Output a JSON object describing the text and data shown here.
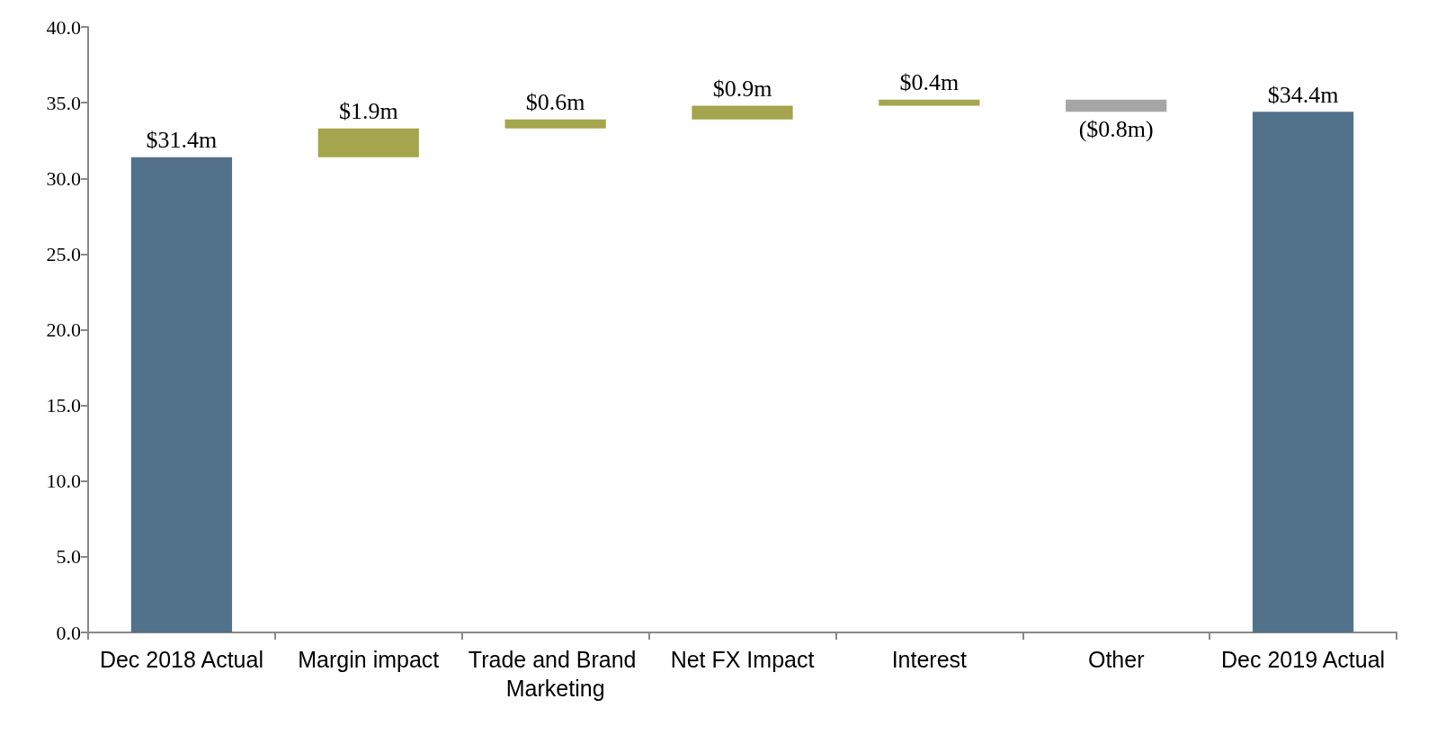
{
  "chart_data": {
    "type": "bar",
    "categories": [
      "Dec 2018 Actual",
      "Margin impact",
      "Trade and Brand Marketing",
      "Net FX Impact",
      "Interest",
      "Other",
      "Dec 2019 Actual"
    ],
    "values": [
      31.4,
      1.9,
      0.6,
      0.9,
      0.4,
      -0.8,
      34.4
    ],
    "base": [
      0,
      31.4,
      33.3,
      33.9,
      34.8,
      35.2,
      0
    ],
    "colors": [
      "#52718a",
      "#a5a54e",
      "#a5a54e",
      "#a5a54e",
      "#a5a54e",
      "#a6a6a6",
      "#52718a"
    ],
    "value_labels": [
      "$31.4m",
      "$1.9m",
      "$0.6m",
      "$0.9m",
      "$0.4m",
      "($0.8m)",
      "$34.4m"
    ],
    "ylim": [
      0,
      40
    ],
    "yticks": [
      {
        "value": 0,
        "label": "0.0"
      },
      {
        "value": 5,
        "label": "5.0"
      },
      {
        "value": 10,
        "label": "10.0"
      },
      {
        "value": 15,
        "label": "15.0"
      },
      {
        "value": 20,
        "label": "20.0"
      },
      {
        "value": 25,
        "label": "25.0"
      },
      {
        "value": 30,
        "label": "30.0"
      },
      {
        "value": 35,
        "label": "35.0"
      },
      {
        "value": 40,
        "label": "40.0"
      }
    ],
    "grid": false
  }
}
